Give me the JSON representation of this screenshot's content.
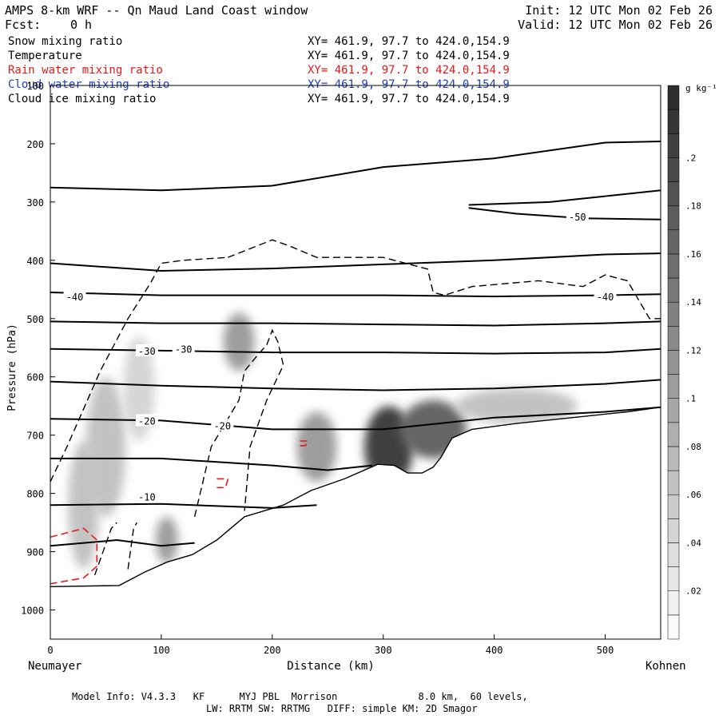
{
  "header": {
    "title": "AMPS 8-km WRF -- Qn Maud Land Coast window",
    "init": "Init: 12 UTC Mon 02 Feb 26",
    "fcst_label": "Fcst:",
    "fcst_value": "0 h",
    "valid": "Valid: 12 UTC Mon 02 Feb 26"
  },
  "fields": [
    {
      "name": "Snow mixing ratio",
      "xy": "XY= 461.9, 97.7 to 424.0,154.9",
      "color": "#000000"
    },
    {
      "name": "Temperature",
      "xy": "XY= 461.9, 97.7 to 424.0,154.9",
      "color": "#000000"
    },
    {
      "name": "Rain water mixing ratio",
      "xy": "XY= 461.9, 97.7 to 424.0,154.9",
      "color": "#e31a1c"
    },
    {
      "name": "Cloud water mixing ratio",
      "xy": "XY= 461.9, 97.7 to 424.0,154.9",
      "color": "#1f3fbf"
    },
    {
      "name": "Cloud ice mixing ratio",
      "xy": "XY= 461.9, 97.7 to 424.0,154.9",
      "color": "#000000"
    }
  ],
  "footer": {
    "line1": "Model Info: V4.3.3   KF      MYJ PBL  Morrison              8.0 km,  60 levels,",
    "line2": "LW: RRTM SW: RRTMG   DIFF: simple KM: 2D Smagor"
  },
  "chart_data": {
    "type": "cross-section",
    "xlabel": "Distance (km)",
    "ylabel": "Pressure (hPa)",
    "x_left_label": "Neumayer",
    "x_right_label": "Kohnen",
    "xlim": [
      0,
      550
    ],
    "ylim": [
      1050,
      100
    ],
    "x_ticks": [
      0,
      100,
      200,
      300,
      400,
      500
    ],
    "y_ticks": [
      100,
      200,
      300,
      400,
      500,
      600,
      700,
      800,
      900,
      1000
    ],
    "colorbar": {
      "unit": "g kg⁻¹",
      "ticks": [
        ".02",
        ".04",
        ".06",
        ".08",
        ".1",
        ".12",
        ".14",
        ".16",
        ".18",
        ".2"
      ],
      "levels": [
        0,
        0.01,
        0.02,
        0.03,
        0.04,
        0.05,
        0.06,
        0.07,
        0.08,
        0.09,
        0.1,
        0.11,
        0.12,
        0.13,
        0.14,
        0.15,
        0.16,
        0.17,
        0.18,
        0.19,
        0.2,
        0.21,
        0.22
      ]
    },
    "terrain": {
      "x": [
        0,
        62,
        85,
        105,
        128,
        150,
        175,
        210,
        235,
        265,
        295,
        310,
        322,
        335,
        345,
        352,
        362,
        380,
        420,
        470,
        520,
        550
      ],
      "p": [
        960,
        958,
        935,
        918,
        905,
        880,
        840,
        820,
        795,
        775,
        750,
        752,
        765,
        765,
        755,
        738,
        705,
        690,
        680,
        670,
        660,
        652
      ]
    },
    "isotherm_labels": [
      {
        "text": "-50",
        "x": 475,
        "p": 325
      },
      {
        "text": "-40",
        "x": 22,
        "p": 462
      },
      {
        "text": "-40",
        "x": 500,
        "p": 462
      },
      {
        "text": "-30",
        "x": 87,
        "p": 555
      },
      {
        "text": "-30",
        "x": 120,
        "p": 552
      },
      {
        "text": "-20",
        "x": 87,
        "p": 675
      },
      {
        "text": "-20",
        "x": 155,
        "p": 683
      },
      {
        "text": "-10",
        "x": 87,
        "p": 805
      }
    ],
    "isotherms": [
      {
        "x": [
          0,
          100,
          200,
          300,
          400,
          500,
          550
        ],
        "p": [
          275,
          280,
          272,
          240,
          225,
          198,
          196
        ]
      },
      {
        "x": [
          377,
          450,
          500,
          550
        ],
        "p": [
          305,
          300,
          290,
          280
        ]
      },
      {
        "x": [
          377,
          420,
          480,
          550
        ],
        "p": [
          310,
          320,
          328,
          330
        ]
      },
      {
        "x": [
          0,
          100,
          200,
          300,
          400,
          500,
          550
        ],
        "p": [
          405,
          418,
          414,
          407,
          400,
          390,
          388
        ]
      },
      {
        "x": [
          0,
          100,
          200,
          300,
          400,
          500,
          550
        ],
        "p": [
          455,
          460,
          460,
          460,
          462,
          460,
          458
        ]
      },
      {
        "x": [
          0,
          100,
          200,
          300,
          400,
          500,
          550
        ],
        "p": [
          505,
          508,
          508,
          510,
          512,
          508,
          505
        ]
      },
      {
        "x": [
          0,
          100,
          200,
          300,
          400,
          500,
          550
        ],
        "p": [
          552,
          555,
          558,
          558,
          560,
          558,
          552
        ]
      },
      {
        "x": [
          0,
          100,
          200,
          300,
          400,
          500,
          550
        ],
        "p": [
          608,
          615,
          620,
          623,
          620,
          612,
          605
        ]
      },
      {
        "x": [
          0,
          100,
          200,
          300,
          350,
          400,
          500,
          550
        ],
        "p": [
          672,
          675,
          690,
          690,
          680,
          670,
          660,
          652
        ]
      },
      {
        "x": [
          0,
          100,
          200,
          250,
          290
        ],
        "p": [
          740,
          740,
          752,
          760,
          752
        ]
      },
      {
        "x": [
          0,
          100,
          200,
          240
        ],
        "p": [
          820,
          818,
          825,
          820
        ]
      },
      {
        "x": [
          0,
          60,
          100,
          130
        ],
        "p": [
          890,
          880,
          890,
          885
        ]
      }
    ],
    "snow_blobs": [
      {
        "x": 30,
        "p": 820,
        "rx": 14,
        "rp": 110,
        "v": 0.06
      },
      {
        "x": 50,
        "p": 720,
        "rx": 18,
        "rp": 120,
        "v": 0.06
      },
      {
        "x": 80,
        "p": 620,
        "rx": 14,
        "rp": 90,
        "v": 0.04
      },
      {
        "x": 105,
        "p": 880,
        "rx": 10,
        "rp": 40,
        "v": 0.1
      },
      {
        "x": 170,
        "p": 540,
        "rx": 14,
        "rp": 50,
        "v": 0.1
      },
      {
        "x": 240,
        "p": 720,
        "rx": 18,
        "rp": 60,
        "v": 0.1
      },
      {
        "x": 305,
        "p": 720,
        "rx": 22,
        "rp": 70,
        "v": 0.2
      },
      {
        "x": 345,
        "p": 690,
        "rx": 30,
        "rp": 50,
        "v": 0.16
      },
      {
        "x": 420,
        "p": 650,
        "rx": 55,
        "rp": 30,
        "v": 0.06
      }
    ],
    "cloud_ice_contours": [
      {
        "x": [
          0,
          15,
          45,
          70,
          90,
          100,
          120,
          160
        ],
        "p": [
          780,
          720,
          590,
          500,
          440,
          405,
          400,
          395
        ]
      },
      {
        "x": [
          160,
          200,
          215,
          240,
          300,
          340,
          345,
          355,
          380,
          440,
          480,
          500,
          520,
          540,
          550
        ],
        "p": [
          395,
          365,
          375,
          395,
          395,
          415,
          455,
          460,
          445,
          435,
          445,
          425,
          435,
          500,
          500
        ]
      },
      {
        "x": [
          130,
          145,
          170,
          175,
          188,
          195,
          200,
          205,
          210,
          195,
          180,
          175
        ],
        "p": [
          840,
          720,
          640,
          590,
          560,
          545,
          520,
          540,
          580,
          640,
          720,
          830
        ]
      },
      {
        "x": [
          40,
          55,
          60
        ],
        "p": [
          940,
          860,
          850
        ]
      },
      {
        "x": [
          70,
          75,
          78
        ],
        "p": [
          930,
          860,
          850
        ]
      }
    ],
    "rain_contours": [
      {
        "x": [
          0,
          30,
          42,
          42,
          30,
          0
        ],
        "p": [
          875,
          860,
          880,
          925,
          945,
          955
        ]
      },
      {
        "x": [
          150,
          160,
          158,
          150
        ],
        "p": [
          775,
          775,
          790,
          790
        ]
      },
      {
        "x": [
          225,
          232,
          230,
          225
        ],
        "p": [
          710,
          710,
          718,
          718
        ]
      }
    ]
  }
}
